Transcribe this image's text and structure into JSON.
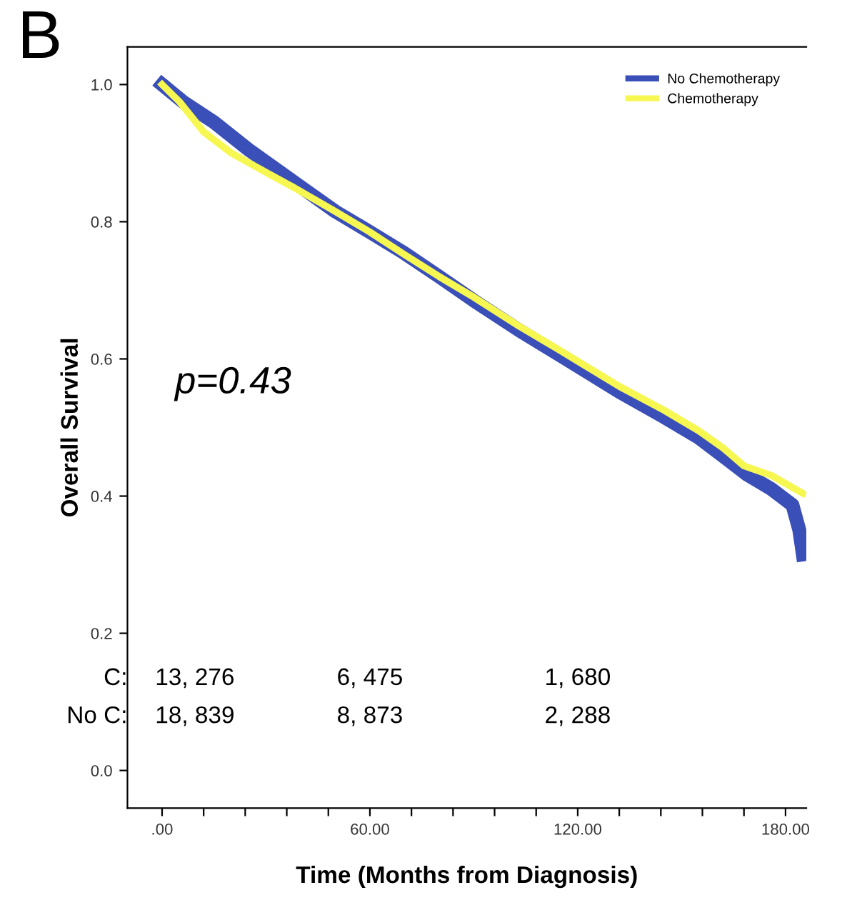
{
  "chart_data": {
    "type": "line",
    "title": "B",
    "xlabel": "Time (Months from Diagnosis)",
    "ylabel": "Overall Survival",
    "xlim": [
      -10,
      186
    ],
    "ylim": [
      -0.055,
      1.055
    ],
    "xticks": [
      {
        "value": 0,
        "label": ".00"
      },
      {
        "value": 12,
        "label": null
      },
      {
        "value": 24,
        "label": null
      },
      {
        "value": 36,
        "label": null
      },
      {
        "value": 48,
        "label": null
      },
      {
        "value": 60,
        "label": "60.00"
      },
      {
        "value": 72,
        "label": null
      },
      {
        "value": 84,
        "label": null
      },
      {
        "value": 96,
        "label": null
      },
      {
        "value": 108,
        "label": null
      },
      {
        "value": 120,
        "label": "120.00"
      },
      {
        "value": 132,
        "label": null
      },
      {
        "value": 144,
        "label": null
      },
      {
        "value": 156,
        "label": null
      },
      {
        "value": 168,
        "label": null
      },
      {
        "value": 180,
        "label": "180.00"
      }
    ],
    "yticks": [
      {
        "value": 0,
        "label": "0.0"
      },
      {
        "value": 0.2,
        "label": "0.2"
      },
      {
        "value": 0.4,
        "label": "0.4"
      },
      {
        "value": 0.6,
        "label": "0.6"
      },
      {
        "value": 0.8,
        "label": "0.8"
      },
      {
        "value": 1,
        "label": "1.0"
      }
    ],
    "grid": false,
    "legend": "top right",
    "series": [
      {
        "name": "No Chemotherapy",
        "color": "#3a4fb8",
        "x": [
          0,
          6,
          15,
          25,
          38,
          50,
          60,
          70,
          80,
          90,
          103,
          115,
          132,
          145,
          155,
          161,
          169,
          176,
          182,
          184,
          185
        ],
        "values": [
          1.0,
          0.975,
          0.945,
          0.905,
          0.858,
          0.815,
          0.785,
          0.754,
          0.72,
          0.685,
          0.642,
          0.605,
          0.552,
          0.515,
          0.485,
          0.462,
          0.431,
          0.41,
          0.387,
          0.35,
          0.315
        ]
      },
      {
        "name": "Chemotherapy",
        "color": "#f7f752",
        "x": [
          0,
          5,
          12,
          20,
          30,
          38,
          50,
          60,
          70,
          80,
          90,
          103,
          115,
          132,
          145,
          155,
          162,
          168,
          176,
          185
        ],
        "values": [
          1.0,
          0.975,
          0.931,
          0.9,
          0.872,
          0.85,
          0.815,
          0.785,
          0.752,
          0.72,
          0.69,
          0.648,
          0.612,
          0.56,
          0.525,
          0.495,
          0.47,
          0.444,
          0.43,
          0.404
        ]
      }
    ],
    "annotations": [
      "p=0.43",
      "C:",
      "13, 276",
      "6, 475",
      "1, 680",
      "No C:",
      "18, 839",
      "8, 873",
      "2, 288"
    ]
  }
}
